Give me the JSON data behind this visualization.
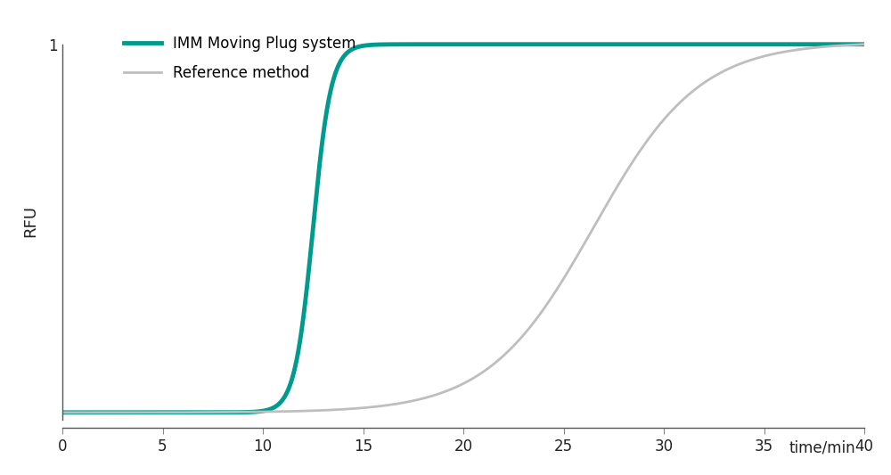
{
  "imm_color": "#009B8D",
  "ref_color": "#BEBEBE",
  "imm_linewidth": 3.5,
  "ref_linewidth": 2.0,
  "imm_label": "IMM Moving Plug system",
  "ref_label": "Reference method",
  "ylabel": "RFU",
  "xlabel": "time/min",
  "xlim": [
    0,
    40
  ],
  "ylim": [
    -0.02,
    1.08
  ],
  "xticks": [
    0,
    5,
    10,
    15,
    20,
    25,
    30,
    35,
    40
  ],
  "yticks": [
    1
  ],
  "imm_midpoint": 12.5,
  "imm_k": 2.2,
  "ref_midpoint": 26.5,
  "ref_k": 0.38,
  "background_color": "#FFFFFF"
}
